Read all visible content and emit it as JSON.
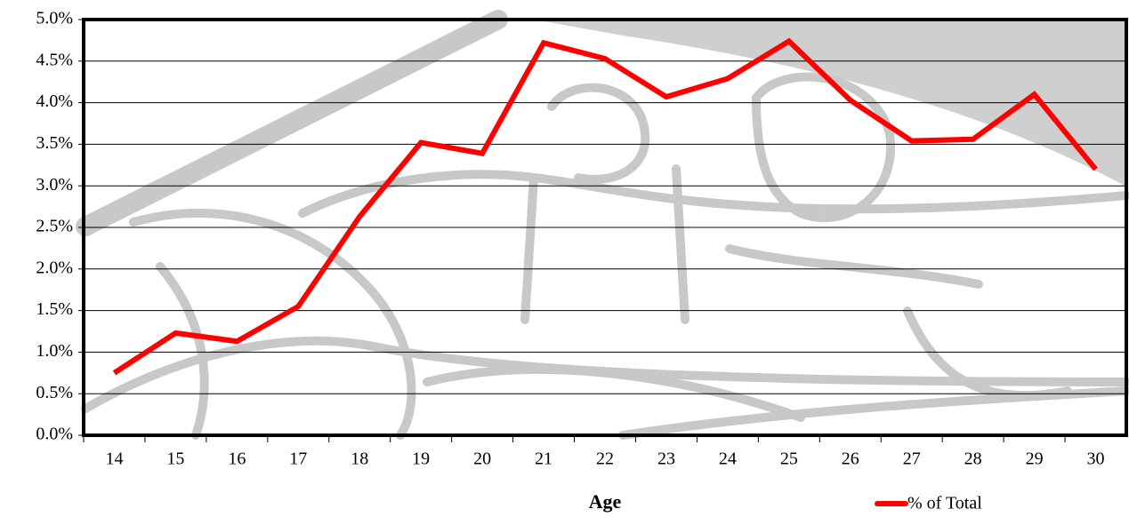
{
  "chart_data": {
    "type": "line",
    "x_label": "Age",
    "categories": [
      "14",
      "15",
      "16",
      "17",
      "18",
      "19",
      "20",
      "21",
      "22",
      "23",
      "24",
      "25",
      "26",
      "27",
      "28",
      "29",
      "30"
    ],
    "series": [
      {
        "name": "% of Total",
        "color": "#ff0000",
        "values": [
          0.75,
          1.23,
          1.13,
          1.55,
          2.63,
          3.52,
          3.39,
          4.72,
          4.53,
          4.07,
          4.29,
          4.74,
          4.03,
          3.54,
          3.56,
          4.1,
          3.2
        ]
      }
    ],
    "ylim": [
      0,
      5
    ],
    "yticks": [
      {
        "value": 0,
        "label": "0.0%"
      },
      {
        "value": 0.5,
        "label": "0.5%"
      },
      {
        "value": 1,
        "label": "1.0%"
      },
      {
        "value": 1.5,
        "label": "1.5%"
      },
      {
        "value": 2,
        "label": "2.0%"
      },
      {
        "value": 2.5,
        "label": "2.5%"
      },
      {
        "value": 3,
        "label": "3.0%"
      },
      {
        "value": 3.5,
        "label": "3.5%"
      },
      {
        "value": 4,
        "label": "4.0%"
      },
      {
        "value": 4.5,
        "label": "4.5%"
      },
      {
        "value": 5,
        "label": "5.0%"
      }
    ],
    "grid": true,
    "legend": "bottom-right"
  }
}
